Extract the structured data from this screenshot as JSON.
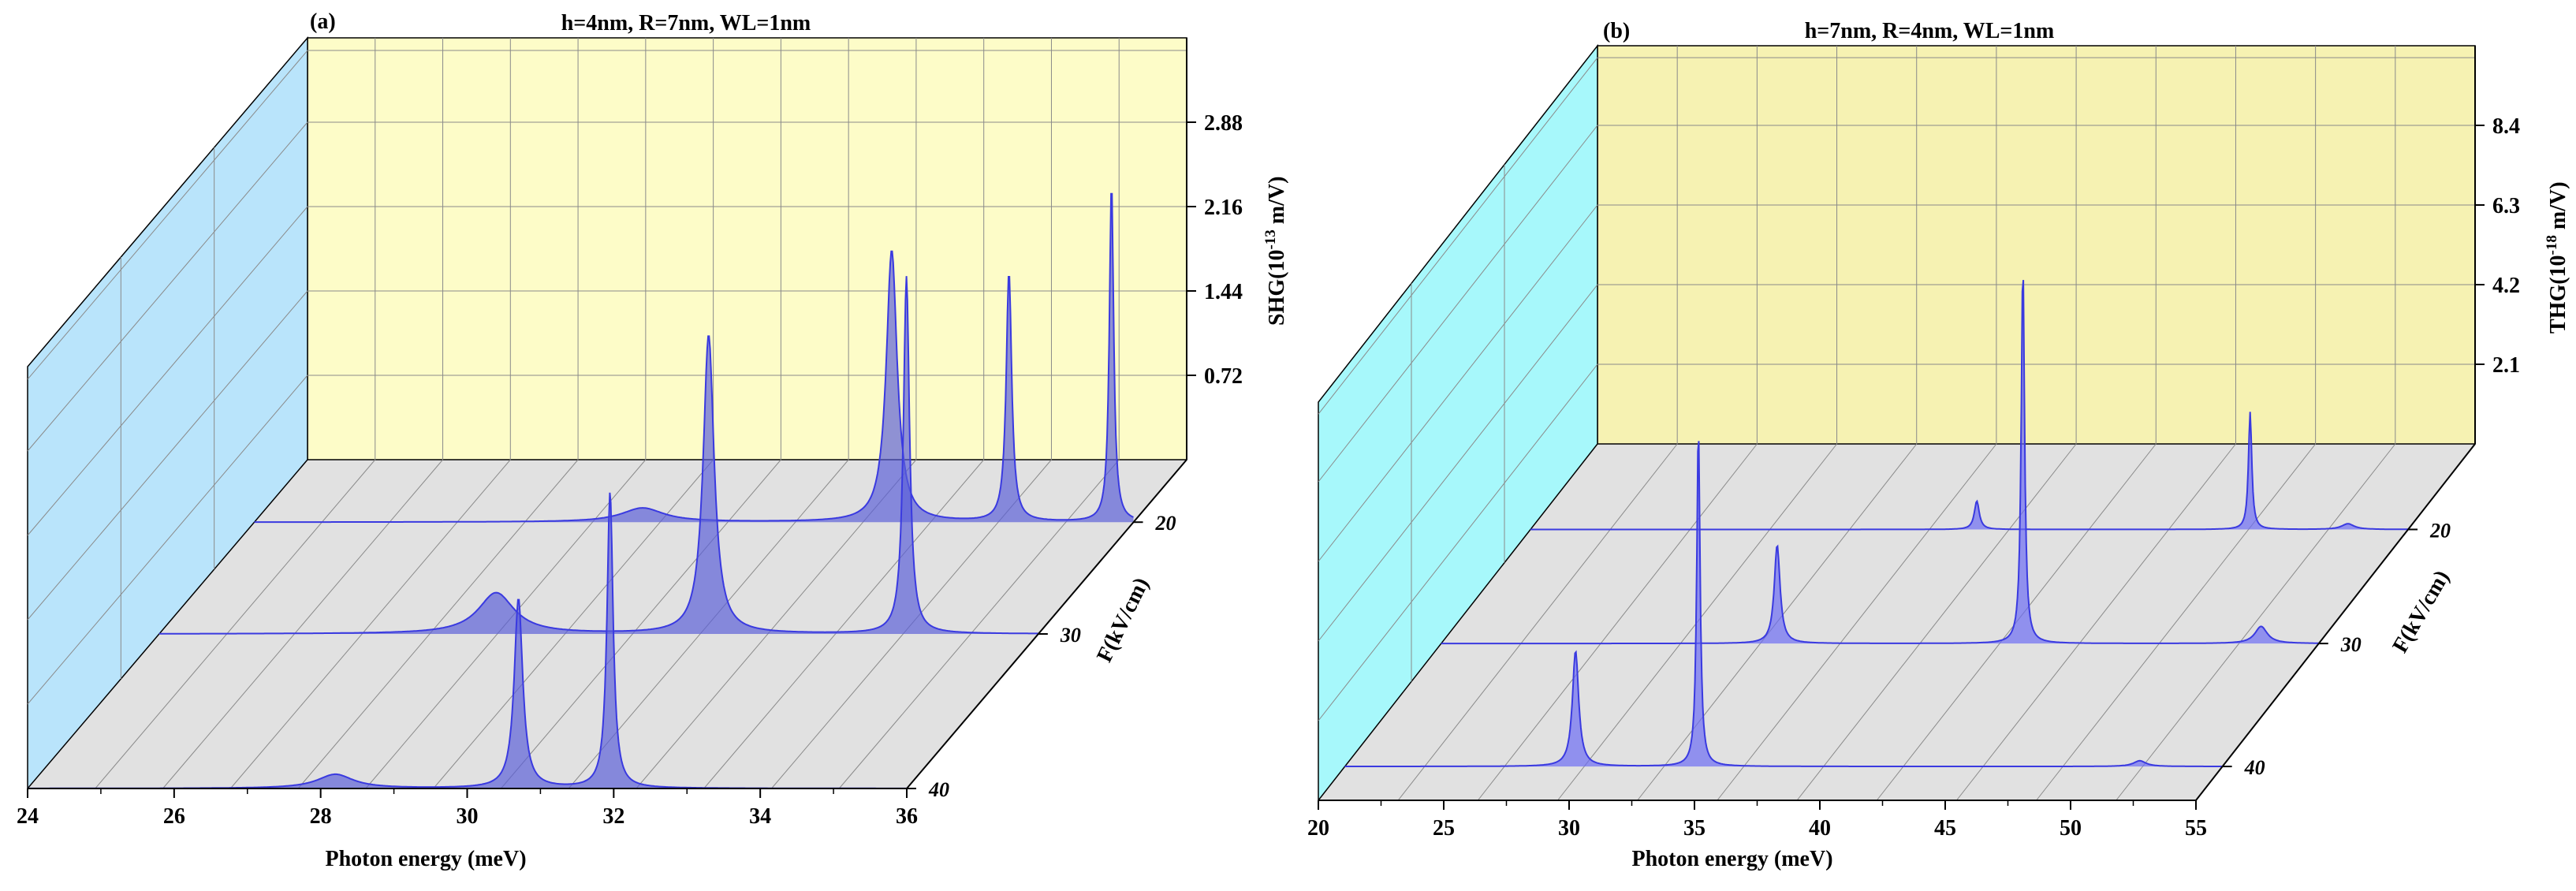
{
  "figure": {
    "panels": [
      "a",
      "b"
    ]
  },
  "colors": {
    "back_wall_a": "#fdfcc8",
    "back_wall_b": "#f6f2b2",
    "side_wall_a": "#b9e4fb",
    "side_wall_b": "#a7f8fb",
    "floor": "#e1e1e1",
    "grid": "#8a8a8a",
    "curve_stroke": "#3a3ae0",
    "curve_fill": "#5a5fd8",
    "curve_fill_b": "#6a6af4"
  },
  "chart_data": [
    {
      "type": "area",
      "panel_label": "(a)",
      "title": "h=4nm, R=7nm, WL=1nm",
      "xlabel": "Photon energy (meV)",
      "ylabel_main": "SHG(10",
      "ylabel_exp": "-13",
      "ylabel_unit": " m/V)",
      "zlabel": "F(kV/cm)",
      "xlim": [
        24,
        36
      ],
      "ylim": [
        0,
        3.6
      ],
      "x_ticks": [
        "24",
        "26",
        "28",
        "30",
        "32",
        "34",
        "36"
      ],
      "x_tick_values": [
        24,
        26,
        28,
        30,
        32,
        34,
        36
      ],
      "y_ticks": [
        "0.72",
        "1.44",
        "2.16",
        "2.88"
      ],
      "y_tick_values": [
        0.72,
        1.44,
        2.16,
        2.88
      ],
      "z_ticks": [
        "20",
        "30",
        "40"
      ],
      "series": [
        {
          "name": "20",
          "peaks": [
            {
              "x": 29.3,
              "height": 0.12,
              "width": 0.35
            },
            {
              "x": 32.7,
              "height": 2.32,
              "width": 0.09
            },
            {
              "x": 34.3,
              "height": 2.13,
              "width": 0.045
            },
            {
              "x": 35.7,
              "height": 2.9,
              "width": 0.035
            }
          ]
        },
        {
          "name": "30",
          "peaks": [
            {
              "x": 28.6,
              "height": 0.35,
              "width": 0.3
            },
            {
              "x": 31.5,
              "height": 2.55,
              "width": 0.09
            },
            {
              "x": 34.2,
              "height": 3.05,
              "width": 0.05
            }
          ]
        },
        {
          "name": "40",
          "peaks": [
            {
              "x": 28.2,
              "height": 0.12,
              "width": 0.3
            },
            {
              "x": 30.7,
              "height": 1.62,
              "width": 0.07
            },
            {
              "x": 31.95,
              "height": 2.53,
              "width": 0.05
            }
          ]
        }
      ]
    },
    {
      "type": "area",
      "panel_label": "(b)",
      "title": "h=7nm, R=4nm, WL=1nm",
      "xlabel": "Photon energy (meV)",
      "ylabel_main": "THG(10",
      "ylabel_exp": "-18",
      "ylabel_unit": " m/V)",
      "zlabel": "F(kV/cm)",
      "xlim": [
        20,
        55
      ],
      "ylim": [
        0,
        10.5
      ],
      "x_ticks": [
        "20",
        "25",
        "30",
        "35",
        "40",
        "45",
        "50",
        "55"
      ],
      "x_tick_values": [
        20,
        25,
        30,
        35,
        40,
        45,
        50,
        55
      ],
      "y_ticks": [
        "2.1",
        "4.2",
        "6.3",
        "8.4"
      ],
      "y_tick_values": [
        2.1,
        4.2,
        6.3,
        8.4
      ],
      "z_ticks": [
        "20",
        "30",
        "40"
      ],
      "series": [
        {
          "name": "20",
          "peaks": [
            {
              "x": 37.8,
              "height": 0.75,
              "width": 0.12
            },
            {
              "x": 48.7,
              "height": 3.1,
              "width": 0.08
            },
            {
              "x": 52.6,
              "height": 0.15,
              "width": 0.3
            }
          ]
        },
        {
          "name": "30",
          "peaks": [
            {
              "x": 33.4,
              "height": 2.6,
              "width": 0.14
            },
            {
              "x": 43.2,
              "height": 10.0,
              "width": 0.08
            },
            {
              "x": 52.7,
              "height": 0.45,
              "width": 0.3
            }
          ]
        },
        {
          "name": "40",
          "peaks": [
            {
              "x": 29.2,
              "height": 3.05,
              "width": 0.15
            },
            {
              "x": 34.1,
              "height": 8.95,
              "width": 0.08
            },
            {
              "x": 51.7,
              "height": 0.15,
              "width": 0.3
            }
          ]
        }
      ]
    }
  ]
}
